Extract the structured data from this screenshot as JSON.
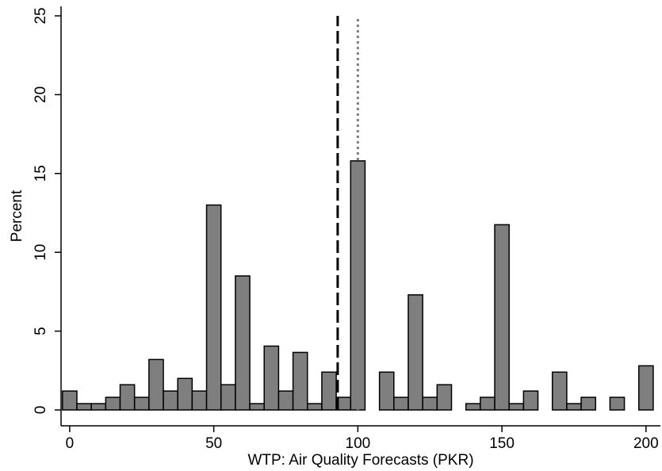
{
  "chart_data": {
    "type": "bar",
    "xlabel": "WTP: Air Quality Forecasts (PKR)",
    "ylabel": "Percent",
    "xlim": [
      -3,
      205
    ],
    "ylim": [
      0,
      25.2
    ],
    "x_ticks": [
      0,
      50,
      100,
      150,
      200
    ],
    "y_ticks": [
      0,
      5,
      10,
      15,
      20,
      25
    ],
    "bin_width": 5,
    "bar_color": "#7f7f7f",
    "bar_edge_color": "#000000",
    "grid": false,
    "series": [
      {
        "x": [
          0,
          5,
          10,
          15,
          20,
          25,
          30,
          35,
          40,
          45,
          50,
          55,
          60,
          65,
          70,
          75,
          80,
          85,
          90,
          95,
          100,
          110,
          115,
          120,
          125,
          130,
          140,
          145,
          150,
          155,
          160,
          170,
          175,
          180,
          190,
          200
        ],
        "values": [
          1.2,
          0.4,
          0.4,
          0.8,
          1.6,
          0.8,
          3.2,
          1.2,
          2.0,
          1.2,
          13.0,
          1.6,
          8.5,
          0.4,
          4.05,
          1.2,
          3.65,
          0.4,
          2.4,
          0.8,
          15.8,
          2.4,
          0.8,
          7.3,
          0.8,
          1.6,
          0.4,
          0.8,
          11.75,
          0.4,
          1.2,
          2.4,
          0.4,
          0.8,
          0.8,
          2.8
        ]
      }
    ],
    "reference_lines": [
      {
        "x": 93,
        "style": "dashed",
        "color": "#000000"
      },
      {
        "x": 100,
        "style": "dotted",
        "color": "#7f7f7f"
      }
    ]
  }
}
